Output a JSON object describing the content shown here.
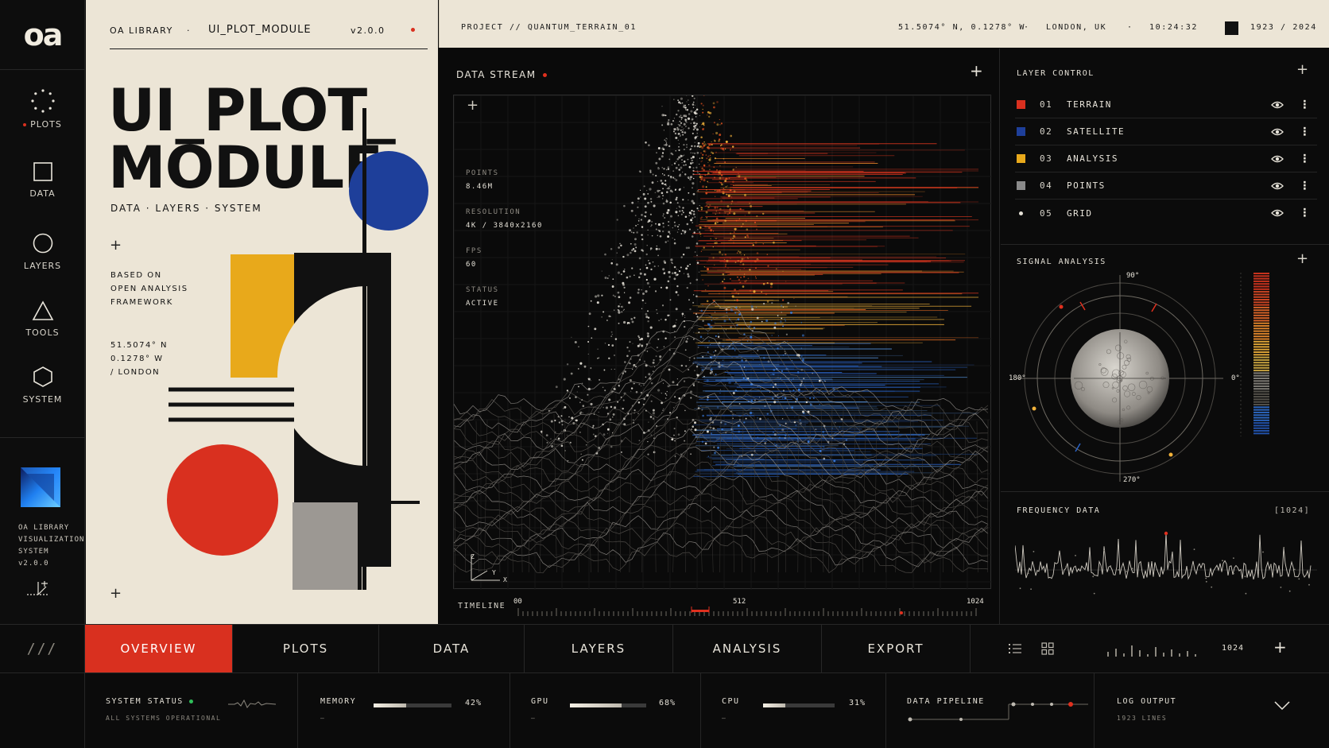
{
  "app": {
    "logo": "oa"
  },
  "rail": {
    "items": [
      {
        "label": "PLOTS",
        "icon": "dotted-circle-icon",
        "active": true
      },
      {
        "label": "DATA",
        "icon": "square-icon"
      },
      {
        "label": "LAYERS",
        "icon": "circle-icon"
      },
      {
        "label": "TOOLS",
        "icon": "triangle-icon"
      },
      {
        "label": "SYSTEM",
        "icon": "hexagon-icon"
      }
    ],
    "system_info": [
      "OA LIBRARY",
      "VISUALIZATION",
      "SYSTEM",
      "v2.0.0"
    ]
  },
  "card": {
    "library": "OA LIBRARY",
    "sep": "·",
    "module": "UI_PLOT_MODULE",
    "version": "v2.0.0",
    "title_line1": "UI_PLOT_",
    "title_line2": "MODULE",
    "subtitle": "DATA · LAYERS · SYSTEM",
    "based_on": [
      "BASED ON",
      "OPEN ANALYSIS",
      "FRAMEWORK"
    ],
    "coords": [
      "51.5074° N",
      "0.1278° W",
      "/ LONDON"
    ]
  },
  "topbar": {
    "project": "PROJECT  //  QUANTUM_TERRAIN_01",
    "coords": "51.5074° N, 0.1278° W",
    "location": "LONDON, UK",
    "time": "10:24:32",
    "years": "1923 / 2024"
  },
  "stream": {
    "title": "DATA STREAM",
    "stats": [
      {
        "label": "POINTS",
        "value": "8.46M"
      },
      {
        "label": "RESOLUTION",
        "value": "4K / 3840x2160"
      },
      {
        "label": "FPS",
        "value": "60"
      },
      {
        "label": "STATUS",
        "value": "ACTIVE"
      }
    ],
    "axes": {
      "x": "X",
      "y": "Y",
      "z": "Z"
    },
    "timeline": {
      "label": "TIMELINE",
      "start": "00",
      "mid": "512",
      "end": "1024"
    }
  },
  "layers": {
    "title": "LAYER CONTROL",
    "items": [
      {
        "num": "01",
        "name": "TERRAIN",
        "color": "#d9301f",
        "shape": "square"
      },
      {
        "num": "02",
        "name": "SATELLITE",
        "color": "#1e3f9a",
        "shape": "square"
      },
      {
        "num": "03",
        "name": "ANALYSIS",
        "color": "#e8a91b",
        "shape": "square"
      },
      {
        "num": "04",
        "name": "POINTS",
        "color": "#8a8a8a",
        "shape": "square"
      },
      {
        "num": "05",
        "name": "GRID",
        "color": "#e4e0d6",
        "shape": "dot"
      }
    ]
  },
  "signal": {
    "title": "SIGNAL ANALYSIS",
    "deg_top": "90°",
    "deg_left": "180°",
    "deg_right": "0°",
    "deg_bottom": "270°"
  },
  "frequency": {
    "title": "FREQUENCY DATA",
    "count": "[1024]"
  },
  "tabs": {
    "items": [
      "OVERVIEW",
      "PLOTS",
      "DATA",
      "LAYERS",
      "ANALYSIS",
      "EXPORT"
    ],
    "active": "OVERVIEW",
    "zoom_value": "1024",
    "hamburger": "///"
  },
  "status": {
    "system": {
      "label": "SYSTEM STATUS",
      "sub": "ALL SYSTEMS OPERATIONAL"
    },
    "memory": {
      "label": "MEMORY",
      "pct": "42%",
      "value": 0.42,
      "dash": "—"
    },
    "gpu": {
      "label": "GPU",
      "pct": "68%",
      "value": 0.68,
      "dash": "—"
    },
    "cpu": {
      "label": "CPU",
      "pct": "31%",
      "value": 0.31,
      "dash": "—"
    },
    "pipeline": {
      "label": "DATA PIPELINE"
    },
    "log": {
      "label": "LOG OUTPUT",
      "sub": "1923 LINES"
    }
  },
  "colors": {
    "accent_red": "#d9301f",
    "accent_blue": "#1e3f9a",
    "accent_yellow": "#e8a91b",
    "cream": "#ece5d6",
    "dark": "#0b0b0b"
  }
}
